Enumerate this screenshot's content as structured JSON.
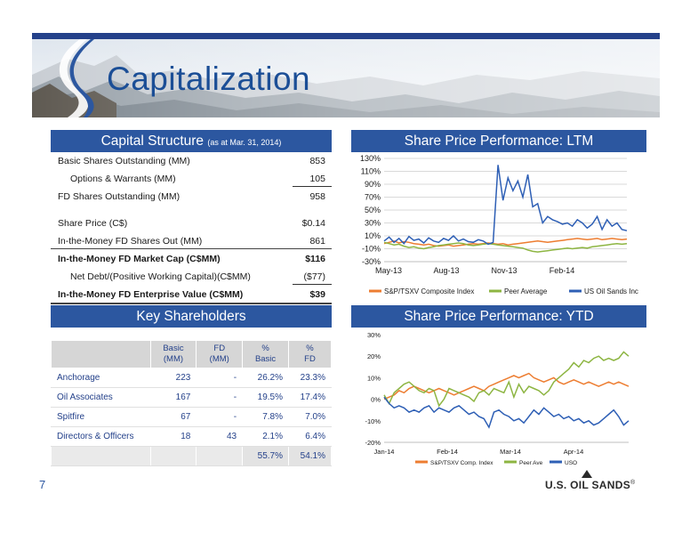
{
  "title": "Capitalization",
  "page_number": "7",
  "logo_text": "U.S. OIL SANDS",
  "logo_mark": "®",
  "capital_structure": {
    "header": "Capital Structure",
    "header_note": "(as at Mar. 31, 2014)",
    "rows": [
      {
        "label": "Basic Shares Outstanding (MM)",
        "value": "853"
      },
      {
        "label": "Options & Warrants (MM)",
        "value": "105"
      },
      {
        "label": "FD Shares Outstanding (MM)",
        "value": "958"
      },
      {
        "label": "Share Price (C$)",
        "value": "$0.14"
      },
      {
        "label": "In-the-Money FD Shares Out (MM)",
        "value": "861"
      },
      {
        "label": "In-the-Money FD Market Cap (C$MM)",
        "value": "$116"
      },
      {
        "label": "Net Debt/(Positive Working Capital)(C$MM)",
        "value": "($77)"
      },
      {
        "label": "In-the-Money FD Enterprise Value (C$MM)",
        "value": "$39"
      }
    ]
  },
  "key_shareholders": {
    "header": "Key Shareholders",
    "columns": [
      {
        "l1": "",
        "l2": ""
      },
      {
        "l1": "Basic",
        "l2": "(MM)"
      },
      {
        "l1": "FD",
        "l2": "(MM)"
      },
      {
        "l1": "%",
        "l2": "Basic"
      },
      {
        "l1": "%",
        "l2": "FD"
      }
    ],
    "rows": [
      [
        "Anchorage",
        "223",
        "-",
        "26.2%",
        "23.3%"
      ],
      [
        "Oil Associates",
        "167",
        "-",
        "19.5%",
        "17.4%"
      ],
      [
        "Spitfire",
        "67",
        "-",
        "7.8%",
        "7.0%"
      ],
      [
        "Directors & Officers",
        "18",
        "43",
        "2.1%",
        "6.4%"
      ]
    ],
    "total": [
      "",
      "",
      "",
      "55.7%",
      "54.1%"
    ]
  },
  "ltm_header": "Share Price Performance: LTM",
  "ytd_header": "Share Price Performance: YTD",
  "chart_data": [
    {
      "type": "line",
      "x_ticks": [
        "May-13",
        "Aug-13",
        "Nov-13",
        "Feb-14"
      ],
      "y_ticks": [
        "130%",
        "110%",
        "90%",
        "70%",
        "50%",
        "30%",
        "10%",
        "-10%",
        "-30%"
      ],
      "ylim": [
        -30,
        130
      ],
      "grid": true,
      "legend_position": "bottom",
      "series": [
        {
          "name": "S&P/TSXV Composite Index",
          "color": "#ed7d31",
          "values": [
            -2,
            0,
            2,
            -1,
            1,
            0,
            -2,
            -3,
            -4,
            -3,
            -5,
            -6,
            -5,
            -4,
            -6,
            -5,
            -4,
            -3,
            -2,
            -3,
            -2,
            -1,
            -2,
            -3,
            -2,
            -4,
            -3,
            -2,
            -1,
            0,
            1,
            2,
            1,
            0,
            1,
            2,
            3,
            4,
            5,
            6,
            5,
            4,
            5,
            6,
            4,
            5,
            6,
            5,
            4,
            5
          ]
        },
        {
          "name": "Peer Average",
          "color": "#8db542",
          "values": [
            0,
            -2,
            -4,
            -3,
            -6,
            -8,
            -7,
            -9,
            -10,
            -8,
            -7,
            -5,
            -4,
            -3,
            -2,
            -1,
            -2,
            -4,
            -5,
            -4,
            -3,
            -2,
            -3,
            -4,
            -5,
            -6,
            -7,
            -8,
            -9,
            -12,
            -14,
            -15,
            -14,
            -13,
            -12,
            -11,
            -10,
            -9,
            -10,
            -9,
            -8,
            -9,
            -7,
            -6,
            -5,
            -4,
            -3,
            -2,
            -3,
            -2
          ]
        },
        {
          "name": "US Oil Sands Inc",
          "color": "#2e5fb5",
          "values": [
            2,
            8,
            0,
            6,
            -2,
            9,
            3,
            5,
            -1,
            7,
            2,
            0,
            6,
            3,
            10,
            2,
            5,
            1,
            0,
            4,
            2,
            -3,
            0,
            120,
            65,
            100,
            80,
            95,
            70,
            105,
            55,
            60,
            30,
            40,
            35,
            32,
            28,
            30,
            25,
            35,
            30,
            22,
            28,
            40,
            20,
            35,
            25,
            30,
            20,
            18
          ]
        }
      ]
    },
    {
      "type": "line",
      "x_ticks": [
        "Jan-14",
        "Feb-14",
        "Mar-14",
        "Apr-14"
      ],
      "y_ticks": [
        "30%",
        "20%",
        "10%",
        "0%",
        "-10%",
        "-20%"
      ],
      "ylim": [
        -20,
        30
      ],
      "grid": false,
      "legend_position": "bottom",
      "series": [
        {
          "name": "S&P/TSXV Comp. Index",
          "color": "#ed7d31",
          "values": [
            0,
            1,
            2,
            4,
            3,
            5,
            6,
            5,
            4,
            3,
            4,
            5,
            4,
            3,
            2,
            3,
            4,
            5,
            6,
            5,
            4,
            6,
            7,
            8,
            9,
            10,
            11,
            10,
            11,
            12,
            10,
            9,
            8,
            9,
            10,
            8,
            7,
            8,
            9,
            8,
            7,
            8,
            7,
            6,
            7,
            8,
            7,
            8,
            7,
            6
          ]
        },
        {
          "name": "Peer Ave",
          "color": "#8db542",
          "values": [
            2,
            -2,
            3,
            5,
            7,
            8,
            6,
            4,
            3,
            5,
            4,
            -3,
            0,
            5,
            4,
            3,
            2,
            1,
            -1,
            3,
            4,
            2,
            5,
            4,
            3,
            8,
            1,
            7,
            3,
            6,
            5,
            4,
            2,
            4,
            8,
            10,
            12,
            14,
            17,
            15,
            18,
            17,
            19,
            20,
            18,
            19,
            18,
            19,
            22,
            20
          ]
        },
        {
          "name": "USO",
          "color": "#2e5fb5",
          "values": [
            1,
            -2,
            -4,
            -3,
            -4,
            -6,
            -5,
            -6,
            -4,
            -3,
            -6,
            -4,
            -5,
            -6,
            -4,
            -3,
            -5,
            -7,
            -6,
            -8,
            -9,
            -13,
            -6,
            -5,
            -7,
            -8,
            -10,
            -9,
            -11,
            -8,
            -5,
            -7,
            -4,
            -6,
            -8,
            -7,
            -9,
            -8,
            -10,
            -9,
            -11,
            -10,
            -12,
            -11,
            -9,
            -7,
            -5,
            -8,
            -12,
            -10
          ]
        }
      ]
    }
  ]
}
